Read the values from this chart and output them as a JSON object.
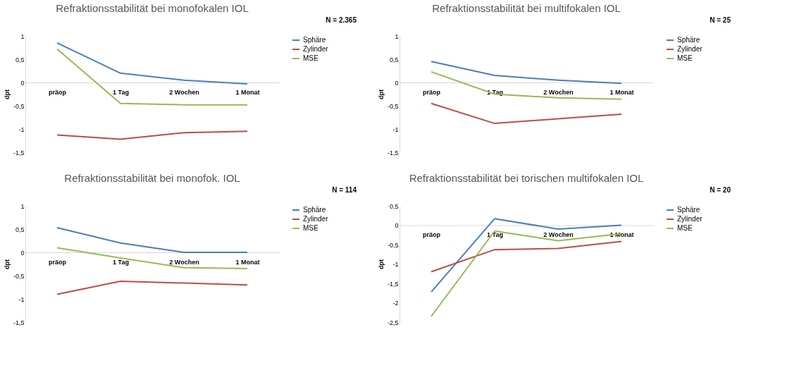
{
  "chart_data": [
    {
      "type": "line",
      "title": "Refraktionsstabilität bei monofokalen IOL",
      "annotations": [
        "N = 2.365"
      ],
      "ylabel": "dpt",
      "categories": [
        "präop",
        "1 Tag",
        "2 Wochen",
        "1 Monat"
      ],
      "ylim": [
        -1.5,
        1
      ],
      "yticks": [
        {
          "value": -1.5,
          "label": "-1,5"
        },
        -1,
        {
          "value": -0.5,
          "label": "-0,5"
        },
        0,
        {
          "value": 0.5,
          "label": "0,5"
        },
        1
      ],
      "grid": false,
      "legend": "right",
      "marker": "none",
      "line_style": "solid",
      "series": [
        {
          "name": "Sphäre",
          "color": "#4a7ebb",
          "values": [
            0.85,
            0.2,
            0.05,
            -0.03
          ]
        },
        {
          "name": "Zylinder",
          "color": "#be4b48",
          "values": [
            -1.13,
            -1.22,
            -1.08,
            -1.05
          ]
        },
        {
          "name": "MSE",
          "color": "#98b954",
          "values": [
            0.72,
            -0.45,
            -0.48,
            -0.48
          ]
        }
      ]
    },
    {
      "type": "line",
      "title": "Refraktionsstabilität bei multifokalen IOL",
      "annotations": [
        "N = 25"
      ],
      "ylabel": "dpt",
      "categories": [
        "präop",
        "1 Tag",
        "2 Wochen",
        "1 Monat"
      ],
      "ylim": [
        -1.5,
        1
      ],
      "yticks": [
        {
          "value": -1.5,
          "label": "-1,5"
        },
        -1,
        {
          "value": -0.5,
          "label": "-0,5"
        },
        0,
        {
          "value": 0.5,
          "label": "0,5"
        },
        1
      ],
      "grid": false,
      "legend": "right",
      "marker": "none",
      "line_style": "solid",
      "series": [
        {
          "name": "Sphäre",
          "color": "#4a7ebb",
          "values": [
            0.45,
            0.15,
            0.05,
            -0.02
          ]
        },
        {
          "name": "Zylinder",
          "color": "#be4b48",
          "values": [
            -0.45,
            -0.88,
            -0.78,
            -0.68
          ]
        },
        {
          "name": "MSE",
          "color": "#98b954",
          "values": [
            0.23,
            -0.25,
            -0.33,
            -0.36
          ]
        }
      ]
    },
    {
      "type": "line",
      "title": "Refraktionsstabilität bei monofok. IOL",
      "annotations": [
        "N = 114"
      ],
      "ylabel": "dpt",
      "categories": [
        "präop",
        "1 Tag",
        "2 Wochen",
        "1 Monat"
      ],
      "ylim": [
        -1.5,
        1
      ],
      "yticks": [
        {
          "value": -1.5,
          "label": "-1,5"
        },
        -1,
        {
          "value": -0.5,
          "label": "-0,5"
        },
        0,
        {
          "value": 0.5,
          "label": "0,5"
        },
        1
      ],
      "grid": false,
      "legend": "right",
      "marker": "none",
      "line_style": "solid",
      "series": [
        {
          "name": "Sphäre",
          "color": "#4a7ebb",
          "values": [
            0.53,
            0.2,
            0,
            0
          ]
        },
        {
          "name": "Zylinder",
          "color": "#be4b48",
          "values": [
            -0.9,
            -0.62,
            -0.66,
            -0.7
          ]
        },
        {
          "name": "MSE",
          "color": "#98b954",
          "values": [
            0.1,
            -0.12,
            -0.33,
            -0.35
          ]
        }
      ]
    },
    {
      "type": "line",
      "title": "Refraktionsstabilität bei torischen multifokalen IOL",
      "annotations": [
        "N = 20"
      ],
      "ylabel": "dpt",
      "categories": [
        "präop",
        "1 Tag",
        "2 Wochen",
        "1 Monat"
      ],
      "ylim": [
        -2.5,
        0.5
      ],
      "yticks": [
        {
          "value": -2.5,
          "label": "-2,5"
        },
        -2,
        {
          "value": -1.5,
          "label": "-1,5"
        },
        -1,
        {
          "value": -0.5,
          "label": "-0,5"
        },
        0,
        {
          "value": 0.5,
          "label": "0,5"
        }
      ],
      "grid": false,
      "legend": "right",
      "marker": "none",
      "line_style": "solid",
      "series": [
        {
          "name": "Sphäre",
          "color": "#4a7ebb",
          "values": [
            -1.72,
            0.17,
            -0.1,
            0
          ]
        },
        {
          "name": "Zylinder",
          "color": "#be4b48",
          "values": [
            -1.2,
            -0.63,
            -0.6,
            -0.42
          ]
        },
        {
          "name": "MSE",
          "color": "#98b954",
          "values": [
            -2.35,
            -0.15,
            -0.4,
            -0.22
          ]
        }
      ]
    }
  ]
}
